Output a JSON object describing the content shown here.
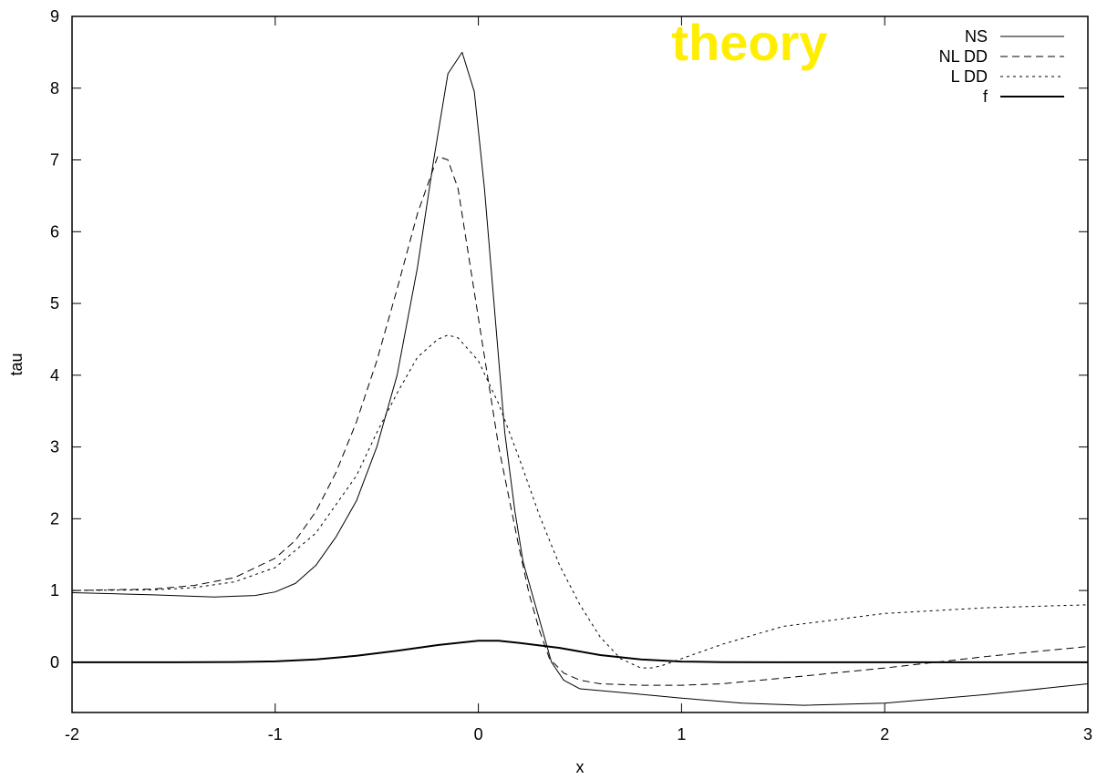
{
  "chart_data": {
    "type": "line",
    "title": "",
    "xlabel": "x",
    "ylabel": "tau",
    "xlim": [
      -2,
      3
    ],
    "ylim": [
      -0.7,
      9
    ],
    "xticks": [
      -2,
      -1,
      0,
      1,
      2,
      3
    ],
    "xtick_labels": [
      "-2",
      "-1",
      "0",
      "1",
      "2",
      "3"
    ],
    "yticks": [
      0,
      1,
      2,
      3,
      4,
      5,
      6,
      7,
      8,
      9
    ],
    "ytick_labels": [
      "0",
      "1",
      "2",
      "3",
      "4",
      "5",
      "6",
      "7",
      "8",
      "9"
    ],
    "grid": false,
    "legend_position": "top-right",
    "annotation": {
      "text": "theory",
      "color": "#ffee00",
      "position": "top-right"
    },
    "series": [
      {
        "name": "NS",
        "style": "solid-thin",
        "color": "#000000",
        "points": [
          [
            -2,
            0.97
          ],
          [
            -1.6,
            0.94
          ],
          [
            -1.3,
            0.91
          ],
          [
            -1.1,
            0.93
          ],
          [
            -1.0,
            0.98
          ],
          [
            -0.9,
            1.1
          ],
          [
            -0.8,
            1.35
          ],
          [
            -0.7,
            1.75
          ],
          [
            -0.6,
            2.25
          ],
          [
            -0.5,
            3.0
          ],
          [
            -0.4,
            4.0
          ],
          [
            -0.3,
            5.5
          ],
          [
            -0.22,
            7.0
          ],
          [
            -0.15,
            8.2
          ],
          [
            -0.08,
            8.5
          ],
          [
            -0.02,
            7.95
          ],
          [
            0.03,
            6.6
          ],
          [
            0.08,
            4.9
          ],
          [
            0.13,
            3.2
          ],
          [
            0.18,
            2.1
          ],
          [
            0.22,
            1.4
          ],
          [
            0.27,
            0.9
          ],
          [
            0.32,
            0.4
          ],
          [
            0.36,
            0.0
          ],
          [
            0.42,
            -0.25
          ],
          [
            0.5,
            -0.37
          ],
          [
            0.7,
            -0.42
          ],
          [
            1.0,
            -0.5
          ],
          [
            1.3,
            -0.57
          ],
          [
            1.6,
            -0.6
          ],
          [
            2.0,
            -0.57
          ],
          [
            2.5,
            -0.45
          ],
          [
            3.0,
            -0.3
          ]
        ]
      },
      {
        "name": "NL DD",
        "style": "dashed",
        "color": "#000000",
        "points": [
          [
            -2,
            1.0
          ],
          [
            -1.6,
            1.02
          ],
          [
            -1.4,
            1.07
          ],
          [
            -1.2,
            1.18
          ],
          [
            -1.0,
            1.45
          ],
          [
            -0.9,
            1.7
          ],
          [
            -0.8,
            2.1
          ],
          [
            -0.7,
            2.65
          ],
          [
            -0.6,
            3.35
          ],
          [
            -0.5,
            4.2
          ],
          [
            -0.4,
            5.2
          ],
          [
            -0.3,
            6.25
          ],
          [
            -0.2,
            7.05
          ],
          [
            -0.15,
            7.0
          ],
          [
            -0.1,
            6.6
          ],
          [
            -0.05,
            5.7
          ],
          [
            0.0,
            4.8
          ],
          [
            0.05,
            3.9
          ],
          [
            0.1,
            3.0
          ],
          [
            0.15,
            2.3
          ],
          [
            0.2,
            1.6
          ],
          [
            0.25,
            0.95
          ],
          [
            0.3,
            0.45
          ],
          [
            0.35,
            0.05
          ],
          [
            0.42,
            -0.15
          ],
          [
            0.5,
            -0.25
          ],
          [
            0.6,
            -0.3
          ],
          [
            0.8,
            -0.32
          ],
          [
            1.0,
            -0.32
          ],
          [
            1.2,
            -0.3
          ],
          [
            1.5,
            -0.22
          ],
          [
            2.0,
            -0.08
          ],
          [
            2.5,
            0.08
          ],
          [
            3.0,
            0.22
          ]
        ]
      },
      {
        "name": "L DD",
        "style": "dotted",
        "color": "#000000",
        "points": [
          [
            -2,
            1.0
          ],
          [
            -1.6,
            1.01
          ],
          [
            -1.4,
            1.04
          ],
          [
            -1.2,
            1.12
          ],
          [
            -1.0,
            1.32
          ],
          [
            -0.8,
            1.8
          ],
          [
            -0.6,
            2.6
          ],
          [
            -0.5,
            3.2
          ],
          [
            -0.4,
            3.75
          ],
          [
            -0.3,
            4.25
          ],
          [
            -0.2,
            4.5
          ],
          [
            -0.15,
            4.56
          ],
          [
            -0.1,
            4.52
          ],
          [
            0.0,
            4.2
          ],
          [
            0.1,
            3.6
          ],
          [
            0.2,
            2.85
          ],
          [
            0.3,
            2.05
          ],
          [
            0.4,
            1.35
          ],
          [
            0.5,
            0.8
          ],
          [
            0.6,
            0.35
          ],
          [
            0.7,
            0.05
          ],
          [
            0.8,
            -0.08
          ],
          [
            0.85,
            -0.08
          ],
          [
            0.9,
            -0.05
          ],
          [
            1.0,
            0.05
          ],
          [
            1.2,
            0.25
          ],
          [
            1.5,
            0.5
          ],
          [
            2.0,
            0.68
          ],
          [
            2.5,
            0.76
          ],
          [
            3.0,
            0.8
          ]
        ]
      },
      {
        "name": "f",
        "style": "solid-thick",
        "color": "#000000",
        "points": [
          [
            -2,
            0.0
          ],
          [
            -1.5,
            0.0
          ],
          [
            -1.2,
            0.003
          ],
          [
            -1.0,
            0.012
          ],
          [
            -0.8,
            0.04
          ],
          [
            -0.6,
            0.09
          ],
          [
            -0.4,
            0.16
          ],
          [
            -0.2,
            0.24
          ],
          [
            0.0,
            0.3
          ],
          [
            0.1,
            0.3
          ],
          [
            0.2,
            0.27
          ],
          [
            0.4,
            0.2
          ],
          [
            0.6,
            0.1
          ],
          [
            0.8,
            0.04
          ],
          [
            1.0,
            0.01
          ],
          [
            1.2,
            0.002
          ],
          [
            1.5,
            0.0
          ],
          [
            3.0,
            0.0
          ]
        ]
      }
    ]
  }
}
